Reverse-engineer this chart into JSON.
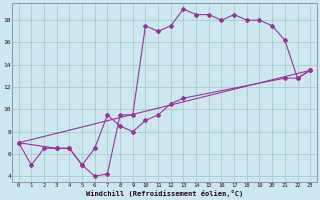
{
  "xlabel": "Windchill (Refroidissement éolien,°C)",
  "bg_color": "#cce8ee",
  "line_color": "#993399",
  "grid_color": "#aacccc",
  "xlim": [
    -0.5,
    23.5
  ],
  "ylim": [
    3.5,
    19.5
  ],
  "xticks": [
    0,
    1,
    2,
    3,
    4,
    5,
    6,
    7,
    8,
    9,
    10,
    11,
    12,
    13,
    14,
    15,
    16,
    17,
    18,
    19,
    20,
    21,
    22,
    23
  ],
  "yticks": [
    4,
    6,
    8,
    10,
    12,
    14,
    16,
    18
  ],
  "series1_x": [
    0,
    1,
    2,
    3,
    4,
    5,
    6,
    7,
    8,
    9,
    10,
    11,
    12,
    13,
    14,
    15,
    16,
    17,
    18,
    19,
    20,
    21,
    22,
    23
  ],
  "series1_y": [
    7.0,
    5.0,
    6.5,
    6.5,
    6.5,
    5.0,
    4.0,
    4.2,
    9.5,
    9.5,
    17.5,
    17.0,
    17.5,
    19.0,
    18.5,
    18.5,
    18.0,
    18.5,
    18.0,
    18.0,
    17.5,
    16.2,
    12.8,
    13.5
  ],
  "series2_x": [
    0,
    3,
    4,
    5,
    6,
    7,
    8,
    9,
    10,
    11,
    12,
    13,
    21,
    22,
    23
  ],
  "series2_y": [
    7.0,
    6.5,
    6.5,
    5.0,
    6.5,
    9.5,
    8.5,
    8.0,
    9.0,
    9.5,
    10.5,
    11.0,
    12.8,
    12.8,
    13.5
  ],
  "series3_x": [
    0,
    23
  ],
  "series3_y": [
    7.0,
    13.5
  ]
}
